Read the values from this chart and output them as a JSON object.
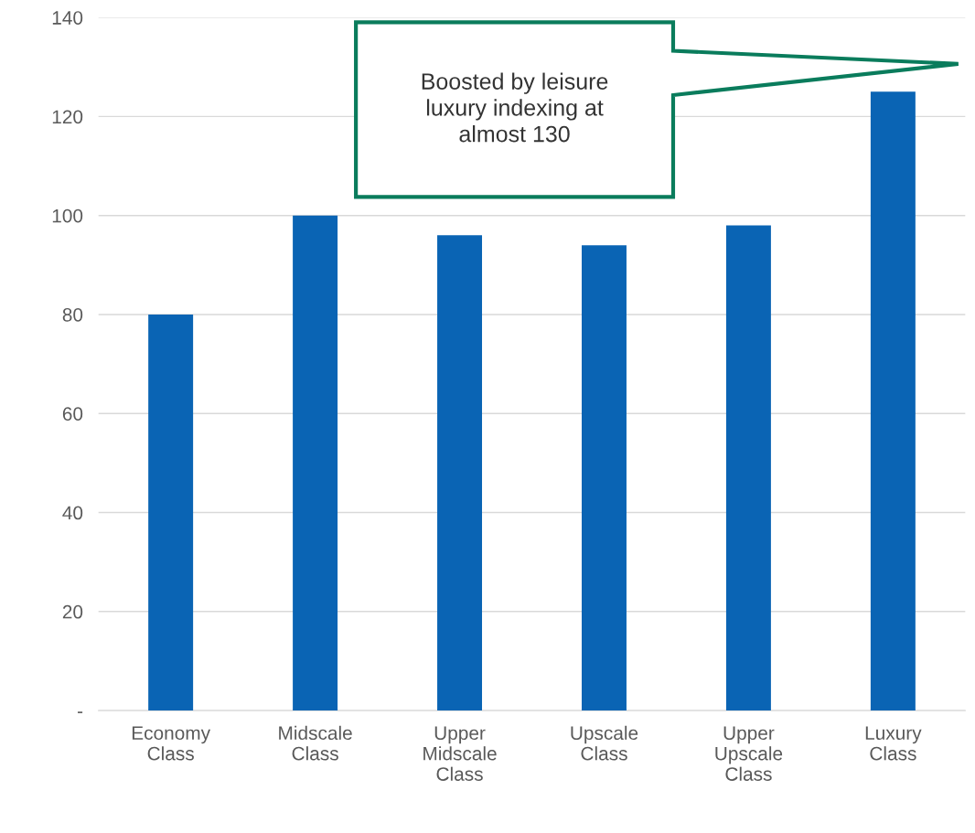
{
  "chart_data": {
    "type": "bar",
    "categories": [
      "Economy\nClass",
      "Midscale\nClass",
      "Upper\nMidscale\nClass",
      "Upscale\nClass",
      "Upper\nUpscale\nClass",
      "Luxury\nClass"
    ],
    "values": [
      80,
      100,
      96,
      94,
      98,
      125
    ],
    "color": "#0a64b4",
    "ylim": [
      0,
      140
    ],
    "yticks": [
      {
        "value": 0,
        "label": "-"
      },
      20,
      40,
      60,
      80,
      100,
      120,
      140
    ],
    "grid": "y",
    "annotations": [
      "Boosted by leisure\nluxury indexing at\nalmost 130"
    ]
  }
}
